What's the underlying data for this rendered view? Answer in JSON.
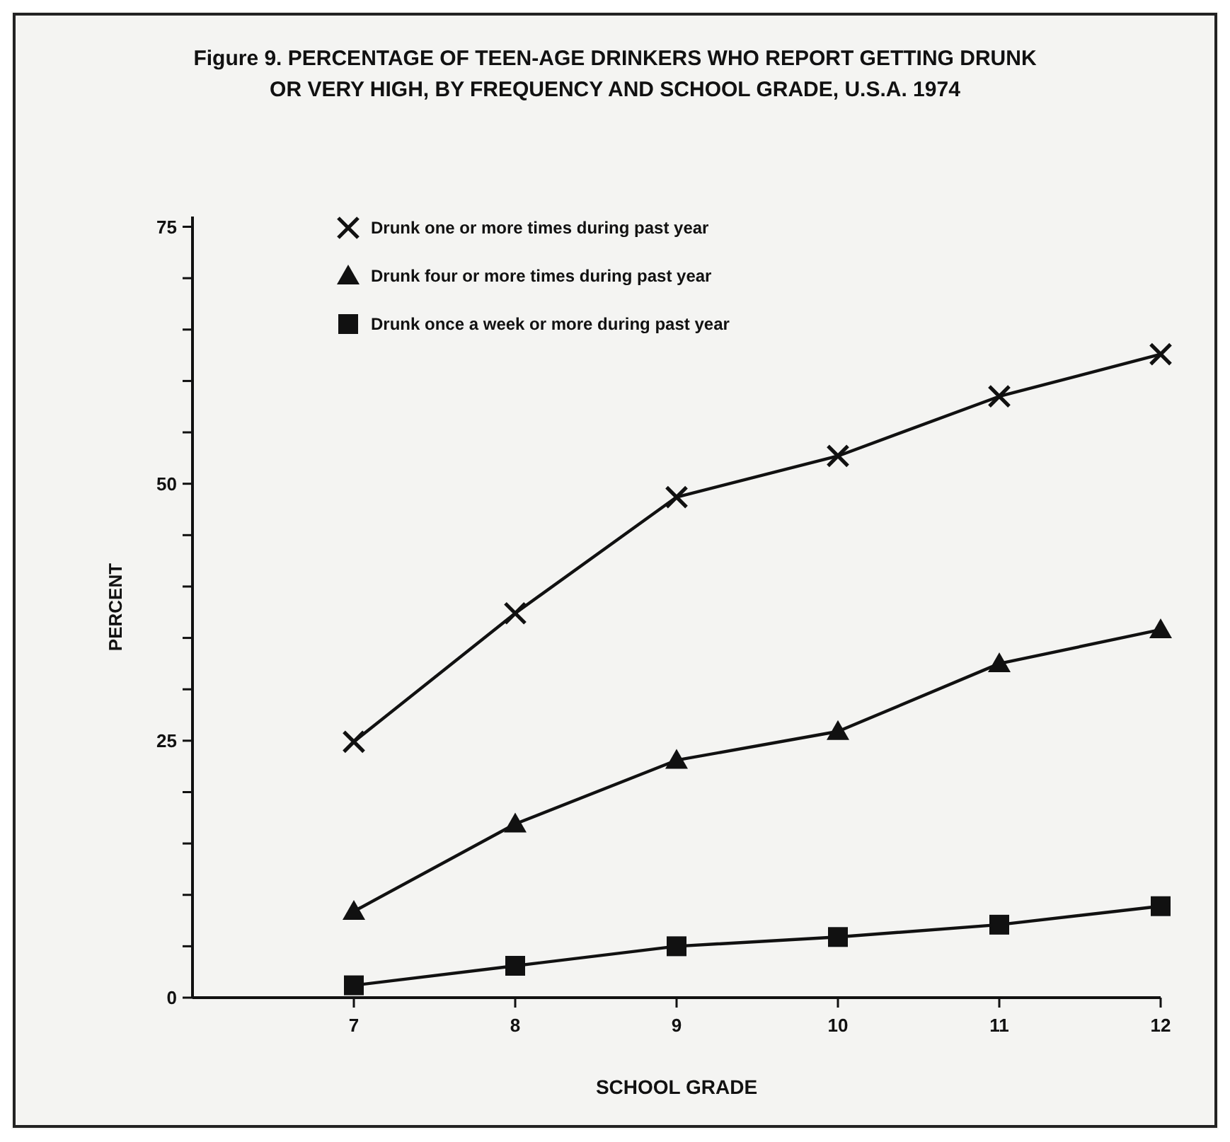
{
  "chart_data": {
    "type": "line",
    "title": "Figure 9. PERCENTAGE OF TEEN-AGE DRINKERS WHO REPORT GETTING DRUNK OR VERY HIGH, BY FREQUENCY AND SCHOOL GRADE, U.S.A. 1974",
    "xlabel": "SCHOOL GRADE",
    "ylabel": "PERCENT",
    "x": [
      7,
      8,
      9,
      10,
      11,
      12
    ],
    "xlim": [
      6,
      12
    ],
    "xticks": [
      7,
      8,
      9,
      10,
      11,
      12
    ],
    "ylim": [
      0,
      76
    ],
    "yticks": [
      0,
      {
        "value": 5,
        "label": null
      },
      {
        "value": 10,
        "label": null
      },
      {
        "value": 15,
        "label": null
      },
      {
        "value": 20,
        "label": null
      },
      25,
      {
        "value": 30,
        "label": null
      },
      {
        "value": 35,
        "label": null
      },
      {
        "value": 40,
        "label": null
      },
      {
        "value": 45,
        "label": null
      },
      50,
      {
        "value": 55,
        "label": null
      },
      {
        "value": 60,
        "label": null
      },
      {
        "value": 65,
        "label": null
      },
      {
        "value": 70,
        "label": null
      },
      75
    ],
    "legend": "top left",
    "grid": false,
    "line_style": "solid",
    "series": [
      {
        "name": "Drunk one or more times during past year",
        "color": "#111111",
        "marker": "cross",
        "values": [
          24.9,
          37.4,
          48.7,
          52.7,
          58.5,
          62.6
        ]
      },
      {
        "name": "Drunk four or more times during past year",
        "color": "#111111",
        "marker": "triangle",
        "values": [
          8.4,
          16.9,
          23.1,
          25.9,
          32.5,
          35.8
        ]
      },
      {
        "name": "Drunk once a week or more during past year",
        "color": "#111111",
        "marker": "square",
        "values": [
          1.2,
          3.1,
          5.0,
          5.9,
          7.1,
          8.9
        ]
      }
    ]
  }
}
